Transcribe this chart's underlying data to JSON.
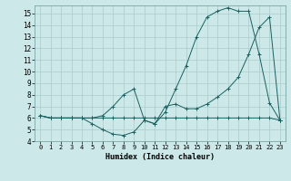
{
  "xlabel": "Humidex (Indice chaleur)",
  "background_color": "#cce8e8",
  "grid_color": "#aacccc",
  "line_color": "#1a6060",
  "xlim": [
    -0.5,
    23.5
  ],
  "ylim": [
    4,
    15.7
  ],
  "xticks": [
    0,
    1,
    2,
    3,
    4,
    5,
    6,
    7,
    8,
    9,
    10,
    11,
    12,
    13,
    14,
    15,
    16,
    17,
    18,
    19,
    20,
    21,
    22,
    23
  ],
  "yticks": [
    4,
    5,
    6,
    7,
    8,
    9,
    10,
    11,
    12,
    13,
    14,
    15
  ],
  "line1_x": [
    0,
    1,
    2,
    3,
    4,
    5,
    6,
    7,
    8,
    9,
    10,
    11,
    12,
    13,
    14,
    15,
    16,
    17,
    18,
    19,
    20,
    21,
    22,
    23
  ],
  "line1_y": [
    6.2,
    6.0,
    6.0,
    6.0,
    6.0,
    6.0,
    6.0,
    6.0,
    6.0,
    6.0,
    6.0,
    6.0,
    6.0,
    6.0,
    6.0,
    6.0,
    6.0,
    6.0,
    6.0,
    6.0,
    6.0,
    6.0,
    6.0,
    5.8
  ],
  "line2_x": [
    0,
    1,
    2,
    3,
    4,
    5,
    6,
    7,
    8,
    9,
    10,
    11,
    12,
    13,
    14,
    15,
    16,
    17,
    18,
    19,
    20,
    21,
    22,
    23
  ],
  "line2_y": [
    6.2,
    6.0,
    6.0,
    6.0,
    6.0,
    5.5,
    5.0,
    4.6,
    4.5,
    4.8,
    5.8,
    5.5,
    6.5,
    8.5,
    10.5,
    13.0,
    14.7,
    15.2,
    15.5,
    15.2,
    15.2,
    11.5,
    7.3,
    5.8
  ],
  "line3_x": [
    0,
    1,
    2,
    3,
    4,
    5,
    6,
    7,
    8,
    9,
    10,
    11,
    12,
    13,
    14,
    15,
    16,
    17,
    18,
    19,
    20,
    21,
    22,
    23
  ],
  "line3_y": [
    6.2,
    6.0,
    6.0,
    6.0,
    6.0,
    6.0,
    6.2,
    7.0,
    8.0,
    8.5,
    5.8,
    5.5,
    7.0,
    7.2,
    6.8,
    6.8,
    7.2,
    7.8,
    8.5,
    9.5,
    11.5,
    13.8,
    14.7,
    5.8
  ]
}
